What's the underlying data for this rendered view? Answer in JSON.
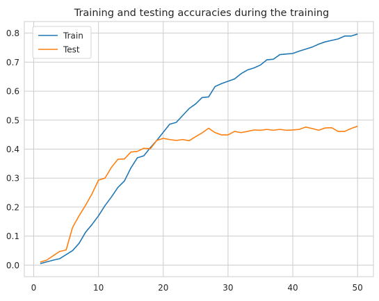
{
  "chart_data": {
    "type": "line",
    "title": "Training and testing accuracies during the training",
    "xlabel": "",
    "ylabel": "",
    "xlim": [
      -1.45,
      52.45
    ],
    "ylim": [
      -0.04,
      0.84
    ],
    "x_ticks": [
      0,
      10,
      20,
      30,
      40,
      50
    ],
    "y_ticks": [
      0.0,
      0.1,
      0.2,
      0.3,
      0.4,
      0.5,
      0.6,
      0.7,
      0.8
    ],
    "grid": true,
    "legend_position": "top-left",
    "x": [
      1,
      2,
      3,
      4,
      5,
      6,
      7,
      8,
      9,
      10,
      11,
      12,
      13,
      14,
      15,
      16,
      17,
      18,
      19,
      20,
      21,
      22,
      23,
      24,
      25,
      26,
      27,
      28,
      29,
      30,
      31,
      32,
      33,
      34,
      35,
      36,
      37,
      38,
      39,
      40,
      41,
      42,
      43,
      44,
      45,
      46,
      47,
      48,
      49,
      50
    ],
    "series": [
      {
        "name": "Train",
        "color": "#1f77b4",
        "values": [
          0.005,
          0.011,
          0.017,
          0.022,
          0.036,
          0.05,
          0.075,
          0.113,
          0.14,
          0.17,
          0.205,
          0.235,
          0.268,
          0.29,
          0.335,
          0.37,
          0.377,
          0.405,
          0.43,
          0.458,
          0.486,
          0.492,
          0.516,
          0.54,
          0.556,
          0.578,
          0.58,
          0.616,
          0.626,
          0.634,
          0.642,
          0.66,
          0.673,
          0.68,
          0.69,
          0.708,
          0.71,
          0.726,
          0.728,
          0.73,
          0.738,
          0.745,
          0.752,
          0.762,
          0.77,
          0.775,
          0.78,
          0.79,
          0.79,
          0.797
        ]
      },
      {
        "name": "Test",
        "color": "#ff7f0e",
        "values": [
          0.01,
          0.017,
          0.032,
          0.047,
          0.052,
          0.13,
          0.17,
          0.206,
          0.246,
          0.293,
          0.3,
          0.337,
          0.365,
          0.366,
          0.39,
          0.392,
          0.403,
          0.401,
          0.43,
          0.437,
          0.433,
          0.43,
          0.433,
          0.429,
          0.443,
          0.456,
          0.472,
          0.457,
          0.449,
          0.449,
          0.461,
          0.457,
          0.461,
          0.466,
          0.465,
          0.468,
          0.465,
          0.468,
          0.465,
          0.466,
          0.468,
          0.476,
          0.471,
          0.465,
          0.473,
          0.474,
          0.461,
          0.461,
          0.471,
          0.479
        ]
      }
    ]
  }
}
